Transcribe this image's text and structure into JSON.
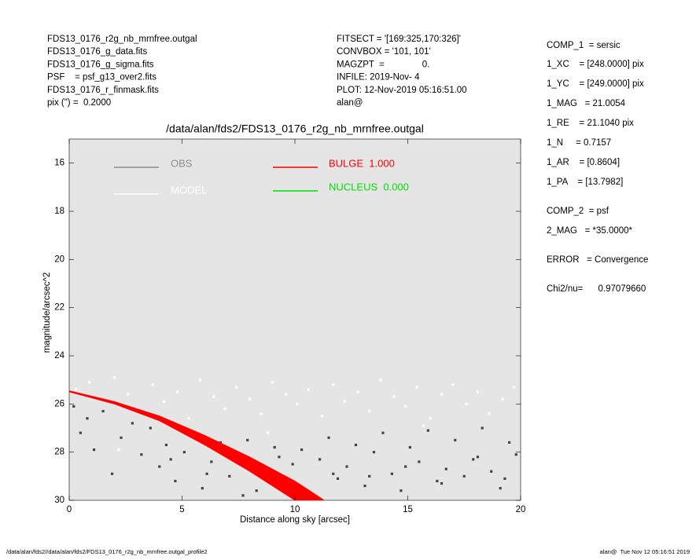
{
  "header": {
    "left": [
      "FDS13_0176_r2g_nb_mrnfree.outgal",
      "FDS13_0176_g_data.fits",
      "FDS13_0176_g_sigma.fits",
      "PSF    = psf_g13_over2.fits",
      "FDS13_0176_r_finmask.fits",
      "pix (\") =  0.2000"
    ],
    "middle": [
      "FITSECT = '[169:325,170:326]'",
      "CONVBOX = '101, 101'",
      "MAGZPT  =               0.",
      "INFILE: 2019-Nov- 4",
      "PLOT: 12-Nov-2019 05:16:51.00",
      "alan@"
    ],
    "right": [
      "COMP_1  = sersic",
      "1_XC    = [248.0000] pix",
      "1_YC    = [249.0000] pix",
      "1_MAG   = 21.0054",
      "1_RE    = 21.1040 pix",
      "1_N     = 0.7157",
      "1_AR    = [0.8604]",
      "1_PA    = [13.7982]",
      "COMP_2  = psf",
      "2_MAG   = *35.0000*",
      "ERROR   = Convergence",
      "Chi2/nu=      0.97079660"
    ]
  },
  "footer": {
    "left": "/data/alan/fds2//data/alan/fds2/FDS13_0176_r2g_nb_mrnfree.outgal_profile2",
    "right": "alan@  Tue Nov 12 05:16:51 2019"
  },
  "chart_data": {
    "type": "scatter",
    "title": "/data/alan/fds2/FDS13_0176_r2g_nb_mrnfree.outgal",
    "x_label": "Distance along sky [arcsec]",
    "y_label": "magnitude/arcsec^2",
    "xlim": [
      0,
      20
    ],
    "xticks": [
      0,
      5,
      10,
      15,
      20
    ],
    "ylim": [
      15,
      30
    ],
    "y_inverted": true,
    "yticks": [
      16,
      18,
      20,
      22,
      24,
      26,
      28,
      30
    ],
    "background": "#e5e5e5",
    "series": [
      {
        "name": "OBS",
        "color": "#444444",
        "legend_color": "#8c8c8c",
        "x": [
          0.2,
          0.5,
          0.8,
          1.1,
          1.5,
          1.9,
          2.3,
          2.8,
          3.2,
          3.6,
          4.0,
          4.3,
          4.7,
          5.1,
          5.5,
          5.9,
          6.3,
          6.7,
          7.1,
          7.5,
          7.9,
          8.3,
          8.7,
          9.1,
          9.5,
          9.9,
          10.3,
          10.7,
          11.1,
          11.5,
          11.9,
          12.3,
          12.7,
          13.1,
          13.5,
          13.9,
          14.3,
          14.7,
          15.1,
          15.5,
          15.9,
          16.3,
          16.7,
          17.1,
          17.5,
          17.9,
          18.3,
          18.7,
          19.1,
          19.5,
          19.8,
          4.5,
          6.1,
          7.7,
          9.3,
          11.7,
          13.3,
          14.9,
          16.5,
          18.1,
          19.3
        ],
        "values": [
          26.1,
          27.2,
          26.6,
          27.9,
          26.3,
          28.9,
          27.4,
          26.8,
          28.1,
          27.0,
          28.6,
          27.7,
          29.2,
          28.0,
          27.3,
          29.5,
          28.4,
          27.6,
          29.0,
          28.2,
          27.5,
          29.6,
          28.8,
          27.8,
          29.3,
          28.5,
          27.9,
          29.7,
          28.3,
          27.4,
          29.1,
          28.6,
          27.7,
          29.4,
          28.0,
          27.2,
          28.9,
          29.6,
          27.8,
          28.4,
          27.1,
          29.2,
          28.7,
          27.5,
          29.0,
          28.3,
          27.0,
          28.8,
          29.5,
          27.6,
          28.1,
          28.3,
          28.9,
          29.8,
          28.2,
          28.9,
          29.0,
          28.6,
          29.3,
          28.2,
          29.1
        ]
      },
      {
        "name": "MODEL",
        "color": "#ffffff",
        "legend_color": "#ffffff",
        "x": [
          0.3,
          0.9,
          1.4,
          2.0,
          2.6,
          3.1,
          3.7,
          4.2,
          4.8,
          5.3,
          5.8,
          6.4,
          6.9,
          7.4,
          8.0,
          8.5,
          9.0,
          9.6,
          10.1,
          10.6,
          11.2,
          11.7,
          12.2,
          12.8,
          13.3,
          13.8,
          14.4,
          14.9,
          15.4,
          16.0,
          16.5,
          17.0,
          17.6,
          18.1,
          18.6,
          19.2,
          19.7,
          2.2,
          8.8,
          15.7
        ],
        "values": [
          25.4,
          25.1,
          25.8,
          24.9,
          25.6,
          26.3,
          25.2,
          25.9,
          25.5,
          26.6,
          25.0,
          25.7,
          26.2,
          25.3,
          25.8,
          26.4,
          25.1,
          25.6,
          26.0,
          25.4,
          26.5,
          25.2,
          25.9,
          25.5,
          26.3,
          25.0,
          25.7,
          26.1,
          25.3,
          26.6,
          25.6,
          25.2,
          26.0,
          25.5,
          26.4,
          25.8,
          25.3,
          27.9,
          27.2,
          26.9
        ]
      },
      {
        "name": "BULGE  1.000",
        "color": "#ff0000",
        "x": [
          0,
          2,
          4,
          6,
          8,
          10,
          11.3
        ],
        "values": [
          25.45,
          25.9,
          26.5,
          27.3,
          28.2,
          29.2,
          30
        ],
        "values_low": [
          25.5,
          26.0,
          26.7,
          27.7,
          28.8,
          30,
          30
        ]
      },
      {
        "name": "NUCLEUS  0.000",
        "color": "#00e000"
      }
    ]
  }
}
